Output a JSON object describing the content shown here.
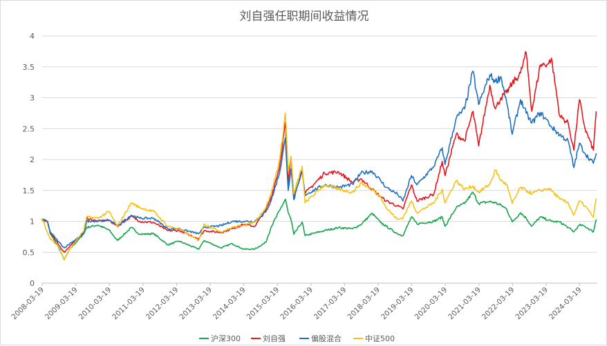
{
  "chart_data": {
    "type": "line",
    "title": "刘自强任职期间收益情况",
    "xlabel": "",
    "ylabel": "",
    "ylim": [
      0,
      4
    ],
    "yticks": [
      "0",
      "0.5",
      "1",
      "1.5",
      "2",
      "2.5",
      "3",
      "3.5",
      "4"
    ],
    "xticks": [
      "2008-03-19",
      "2009-03-19",
      "2010-03-19",
      "2011-03-19",
      "2012-03-19",
      "2013-03-19",
      "2014-03-19",
      "2015-03-19",
      "2016-03-19",
      "2017-03-19",
      "2018-03-19",
      "2019-03-19",
      "2020-03-19",
      "2021-03-19",
      "2022-03-19",
      "2023-03-19",
      "2024-03-19"
    ],
    "grid": true,
    "legend_position": "bottom",
    "x": [
      "2008-03",
      "2008-05",
      "2008-06",
      "2008-09",
      "2008-11",
      "2009-01",
      "2009-06",
      "2009-07",
      "2009-11",
      "2010-03",
      "2010-06",
      "2010-11",
      "2011-02",
      "2011-07",
      "2011-12",
      "2012-04",
      "2012-11",
      "2013-01",
      "2013-07",
      "2013-11",
      "2014-03",
      "2014-07",
      "2014-11",
      "2015-01",
      "2015-04",
      "2015-06",
      "2015-07",
      "2015-08",
      "2015-09",
      "2015-12",
      "2016-01",
      "2016-08",
      "2017-01",
      "2017-06",
      "2017-09",
      "2018-01",
      "2018-04",
      "2018-06",
      "2018-10",
      "2018-12",
      "2019-03",
      "2019-05",
      "2019-11",
      "2020-02",
      "2020-03",
      "2020-07",
      "2020-10",
      "2021-01",
      "2021-03",
      "2021-07",
      "2021-09",
      "2021-11",
      "2022-01",
      "2022-03",
      "2022-06",
      "2022-08",
      "2022-10",
      "2023-01",
      "2023-04",
      "2023-05",
      "2023-08",
      "2023-11",
      "2024-01",
      "2024-03",
      "2024-05",
      "2024-08",
      "2024-09"
    ],
    "series": [
      {
        "name": "沪深300",
        "color": "#16a349",
        "values": [
          1.03,
          1.0,
          0.8,
          0.58,
          0.38,
          0.55,
          0.8,
          0.9,
          0.94,
          0.86,
          0.69,
          0.9,
          0.79,
          0.8,
          0.62,
          0.68,
          0.55,
          0.69,
          0.57,
          0.64,
          0.55,
          0.55,
          0.66,
          0.92,
          1.18,
          1.36,
          1.14,
          1.03,
          0.79,
          0.99,
          0.77,
          0.85,
          0.9,
          0.88,
          0.95,
          1.13,
          0.98,
          0.92,
          0.8,
          0.77,
          1.07,
          0.96,
          1.0,
          1.07,
          0.92,
          1.22,
          1.29,
          1.47,
          1.29,
          1.32,
          1.3,
          1.26,
          1.2,
          0.99,
          1.14,
          1.05,
          0.92,
          1.07,
          1.02,
          1.0,
          0.99,
          0.9,
          0.83,
          0.94,
          0.92,
          0.83,
          1.03
        ]
      },
      {
        "name": "刘自强",
        "color": "#e8141c",
        "values": [
          1.03,
          1.0,
          0.82,
          0.62,
          0.5,
          0.6,
          0.82,
          1.05,
          1.0,
          1.02,
          0.92,
          1.08,
          1.0,
          0.98,
          0.85,
          0.85,
          0.72,
          0.85,
          0.82,
          0.88,
          0.95,
          0.92,
          1.18,
          1.4,
          1.9,
          2.6,
          1.6,
          2.05,
          1.4,
          1.85,
          1.45,
          1.78,
          1.8,
          1.63,
          1.69,
          1.52,
          1.4,
          1.33,
          1.25,
          1.2,
          1.59,
          1.33,
          1.44,
          1.97,
          1.74,
          2.41,
          2.3,
          2.78,
          2.22,
          3.2,
          2.82,
          3.0,
          3.08,
          3.23,
          3.4,
          3.73,
          2.78,
          3.53,
          3.55,
          3.64,
          2.7,
          2.59,
          2.15,
          2.97,
          2.5,
          2.15,
          2.78
        ]
      },
      {
        "name": "偏股混合",
        "color": "#1f6fbf",
        "values": [
          1.03,
          1.0,
          0.83,
          0.67,
          0.57,
          0.64,
          0.8,
          1.0,
          1.0,
          1.02,
          0.93,
          1.1,
          1.05,
          1.05,
          0.88,
          0.88,
          0.8,
          0.9,
          0.93,
          1.0,
          1.0,
          1.0,
          1.15,
          1.35,
          1.8,
          2.35,
          1.5,
          1.85,
          1.35,
          1.8,
          1.43,
          1.59,
          1.55,
          1.6,
          1.78,
          1.81,
          1.66,
          1.55,
          1.44,
          1.33,
          1.74,
          1.59,
          1.89,
          2.19,
          1.92,
          2.67,
          2.82,
          3.43,
          2.89,
          3.37,
          3.26,
          3.34,
          2.93,
          2.41,
          2.97,
          2.75,
          2.59,
          2.76,
          2.6,
          2.53,
          2.4,
          2.3,
          1.87,
          2.26,
          2.1,
          1.94,
          2.1
        ]
      },
      {
        "name": "中证500",
        "color": "#f5c116",
        "values": [
          1.05,
          0.82,
          0.72,
          0.6,
          0.38,
          0.55,
          0.85,
          1.07,
          1.05,
          1.16,
          0.92,
          1.3,
          1.22,
          1.16,
          0.92,
          0.88,
          0.69,
          0.96,
          0.83,
          0.9,
          0.94,
          0.99,
          1.22,
          1.47,
          2.0,
          2.75,
          1.81,
          2.05,
          1.44,
          1.89,
          1.3,
          1.59,
          1.52,
          1.47,
          1.62,
          1.52,
          1.4,
          1.22,
          1.03,
          1.06,
          1.33,
          1.14,
          1.3,
          1.52,
          1.3,
          1.66,
          1.52,
          1.57,
          1.47,
          1.6,
          1.83,
          1.66,
          1.6,
          1.29,
          1.55,
          1.5,
          1.45,
          1.5,
          1.53,
          1.5,
          1.36,
          1.3,
          1.1,
          1.33,
          1.25,
          1.07,
          1.37
        ]
      }
    ]
  }
}
